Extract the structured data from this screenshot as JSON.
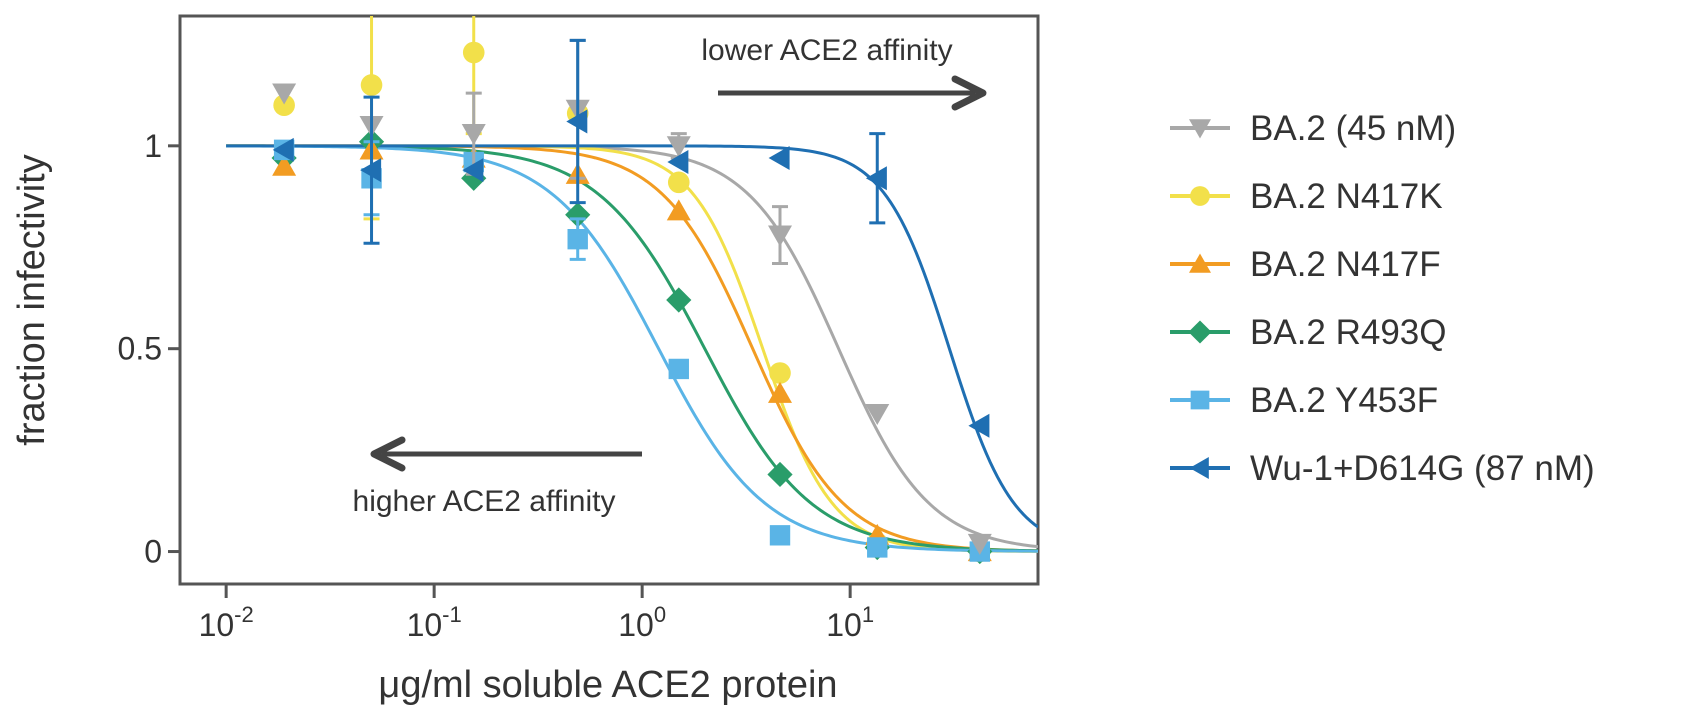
{
  "chart_data": {
    "type": "scatter",
    "xscale": "log",
    "xlabel": "μg/ml soluble ACE2 protein",
    "ylabel": "fraction infectivity",
    "xlim": [
      0.006,
      80
    ],
    "ylim": [
      -0.08,
      1.32
    ],
    "x_ticks": [
      {
        "value": 0.01,
        "base": "10",
        "exp": "-2"
      },
      {
        "value": 0.1,
        "base": "10",
        "exp": "-1"
      },
      {
        "value": 1,
        "base": "10",
        "exp": "0"
      },
      {
        "value": 10,
        "base": "10",
        "exp": "1"
      }
    ],
    "y_ticks": [
      {
        "value": 0,
        "label": "0"
      },
      {
        "value": 0.5,
        "label": "0.5"
      },
      {
        "value": 1,
        "label": "1"
      }
    ],
    "annotations": {
      "lower": "lower ACE2 affinity",
      "higher": "higher ACE2 affinity"
    },
    "legend_position": "right",
    "series": [
      {
        "name": "BA.2 (45 nM)",
        "color": "#a8a8a8",
        "marker": "triangle-down",
        "ic50": 8.8,
        "hill": 2.0,
        "points": [
          {
            "x": 0.019,
            "y": 1.13,
            "err": 0
          },
          {
            "x": 0.05,
            "y": 1.05,
            "err": 0
          },
          {
            "x": 0.155,
            "y": 1.03,
            "err": 0.1
          },
          {
            "x": 0.49,
            "y": 1.09,
            "err": 0.17
          },
          {
            "x": 1.5,
            "y": 1.0,
            "err": 0.03
          },
          {
            "x": 4.6,
            "y": 0.78,
            "err": 0.07
          },
          {
            "x": 13.5,
            "y": 0.34,
            "err": 0
          },
          {
            "x": 42,
            "y": 0.02,
            "err": 0
          }
        ]
      },
      {
        "name": "BA.2 N417K",
        "color": "#f2e04a",
        "marker": "circle",
        "ic50": 3.8,
        "hill": 2.6,
        "points": [
          {
            "x": 0.019,
            "y": 1.1,
            "err": 0
          },
          {
            "x": 0.05,
            "y": 1.15,
            "err": 0.33
          },
          {
            "x": 0.155,
            "y": 1.23,
            "err": 0.2
          },
          {
            "x": 0.49,
            "y": 1.08,
            "err": 0
          },
          {
            "x": 1.5,
            "y": 0.91,
            "err": 0
          },
          {
            "x": 4.6,
            "y": 0.44,
            "err": 0
          },
          {
            "x": 13.5,
            "y": 0.02,
            "err": 0
          },
          {
            "x": 42,
            "y": 0.0,
            "err": 0
          }
        ]
      },
      {
        "name": "BA.2 N417F",
        "color": "#f29c22",
        "marker": "triangle-up",
        "ic50": 3.4,
        "hill": 2.0,
        "points": [
          {
            "x": 0.019,
            "y": 0.95,
            "err": 0
          },
          {
            "x": 0.05,
            "y": 0.99,
            "err": 0
          },
          {
            "x": 0.155,
            "y": 0.97,
            "err": 0
          },
          {
            "x": 0.49,
            "y": 0.93,
            "err": 0
          },
          {
            "x": 1.5,
            "y": 0.84,
            "err": 0
          },
          {
            "x": 4.6,
            "y": 0.39,
            "err": 0
          },
          {
            "x": 13.5,
            "y": 0.04,
            "err": 0
          },
          {
            "x": 42,
            "y": 0.0,
            "err": 0
          }
        ]
      },
      {
        "name": "BA.2 R493Q",
        "color": "#2a9d6a",
        "marker": "diamond",
        "ic50": 2.0,
        "hill": 1.7,
        "points": [
          {
            "x": 0.019,
            "y": 0.97,
            "err": 0
          },
          {
            "x": 0.05,
            "y": 1.01,
            "err": 0
          },
          {
            "x": 0.155,
            "y": 0.92,
            "err": 0
          },
          {
            "x": 0.49,
            "y": 0.83,
            "err": 0
          },
          {
            "x": 1.5,
            "y": 0.62,
            "err": 0
          },
          {
            "x": 4.6,
            "y": 0.19,
            "err": 0
          },
          {
            "x": 13.5,
            "y": 0.01,
            "err": 0
          },
          {
            "x": 42,
            "y": 0.0,
            "err": 0
          }
        ]
      },
      {
        "name": "BA.2 Y453F",
        "color": "#5ab4e6",
        "marker": "square",
        "ic50": 1.2,
        "hill": 1.7,
        "points": [
          {
            "x": 0.019,
            "y": 0.99,
            "err": 0
          },
          {
            "x": 0.05,
            "y": 0.92,
            "err": 0.09
          },
          {
            "x": 0.155,
            "y": 0.96,
            "err": 0
          },
          {
            "x": 0.49,
            "y": 0.77,
            "err": 0.05
          },
          {
            "x": 1.5,
            "y": 0.45,
            "err": 0
          },
          {
            "x": 4.6,
            "y": 0.04,
            "err": 0
          },
          {
            "x": 13.5,
            "y": 0.01,
            "err": 0
          },
          {
            "x": 42,
            "y": 0.0,
            "err": 0
          }
        ]
      },
      {
        "name": "Wu-1+D614G (87 nM)",
        "color": "#1f6fb2",
        "marker": "triangle-left",
        "ic50": 30,
        "hill": 2.8,
        "points": [
          {
            "x": 0.019,
            "y": 0.99,
            "err": 0
          },
          {
            "x": 0.05,
            "y": 0.94,
            "err": 0.18
          },
          {
            "x": 0.155,
            "y": 0.94,
            "err": 0
          },
          {
            "x": 0.49,
            "y": 1.06,
            "err": 0.2
          },
          {
            "x": 1.5,
            "y": 0.96,
            "err": 0
          },
          {
            "x": 4.6,
            "y": 0.97,
            "err": 0
          },
          {
            "x": 13.5,
            "y": 0.92,
            "err": 0.11
          },
          {
            "x": 42,
            "y": 0.31,
            "err": 0
          }
        ]
      }
    ]
  }
}
